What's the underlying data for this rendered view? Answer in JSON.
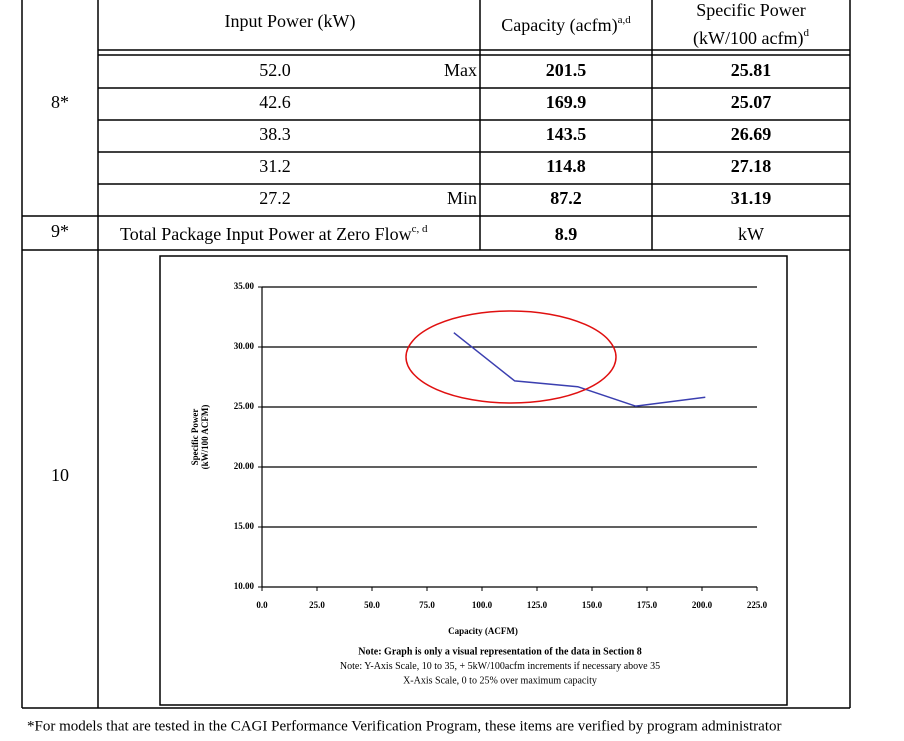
{
  "table": {
    "header": {
      "input_power": "Input Power (kW)",
      "capacity": "Capacity (acfm)",
      "capacity_note": "a,d",
      "specific_power": "Specific Power",
      "specific_power_unit": "(kW/100 acfm)",
      "specific_power_note": "d"
    },
    "rows": [
      {
        "item": "8*",
        "lines": [
          {
            "input": "52.0",
            "limit": "Max",
            "capacity": "201.5",
            "specific": "25.81"
          },
          {
            "input": "42.6",
            "capacity": "169.9",
            "specific": "25.07"
          },
          {
            "input": "38.3",
            "capacity": "143.5",
            "specific": "26.69"
          },
          {
            "input": "31.2",
            "capacity": "114.8",
            "specific": "27.18"
          },
          {
            "input": "27.2",
            "limit": "Min",
            "capacity": "87.2",
            "specific": "31.19"
          }
        ]
      },
      {
        "item": "9*",
        "label": "Total Package Input Power at Zero Flow",
        "label_note": "c, d",
        "capacity": "8.9",
        "specific": "kW"
      },
      {
        "item": "10"
      }
    ]
  },
  "chart_data": {
    "type": "line",
    "x_label": "Capacity (ACFM)",
    "y_label": [
      "Specific Power",
      "(kW/100 ACFM)"
    ],
    "x": [
      87.2,
      114.8,
      143.5,
      169.9,
      201.5
    ],
    "values": [
      31.19,
      27.18,
      26.69,
      25.07,
      25.81
    ],
    "color": "#3b3fb0",
    "xlim": [
      0,
      225
    ],
    "xticks": [
      {
        "value": 0,
        "label": "0.0"
      },
      {
        "value": 25,
        "label": "25.0"
      },
      {
        "value": 50,
        "label": "50.0"
      },
      {
        "value": 75,
        "label": "75.0"
      },
      {
        "value": 100,
        "label": "100.0"
      },
      {
        "value": 125,
        "label": "125.0"
      },
      {
        "value": 150,
        "label": "150.0"
      },
      {
        "value": 175,
        "label": "175.0"
      },
      {
        "value": 200,
        "label": "200.0"
      },
      {
        "value": 225,
        "label": "225.0"
      }
    ],
    "ylim": [
      10,
      35
    ],
    "yticks": [
      {
        "value": 10,
        "label": "10.00"
      },
      {
        "value": 15,
        "label": "15.00"
      },
      {
        "value": 20,
        "label": "20.00"
      },
      {
        "value": 25,
        "label": "25.00"
      },
      {
        "value": 30,
        "label": "30.00"
      },
      {
        "value": 35,
        "label": "35.00"
      }
    ],
    "grid": true,
    "notes": [
      "Note:  Graph is only a visual representation of the data in Section 8",
      "Note:  Y-Axis Scale, 10 to 35, + 5kW/100acfm increments if necessary above 35",
      "X-Axis Scale, 0 to 25% over maximum capacity"
    ]
  },
  "footnote": "*For models that are tested in the CAGI Performance Verification Program, these items are verified by program administrator"
}
